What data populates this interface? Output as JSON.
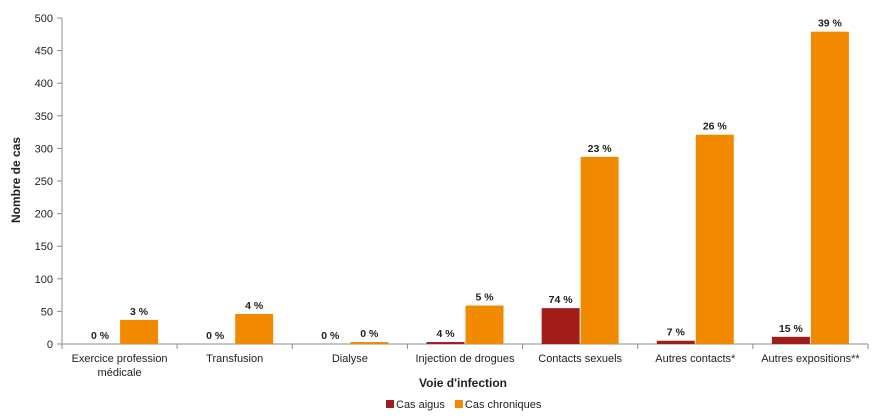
{
  "chart_data": {
    "type": "bar",
    "title": "",
    "xlabel": "Voie d'infection",
    "ylabel": "Nombre de cas",
    "ylim": [
      0,
      500
    ],
    "yticks": [
      0,
      50,
      100,
      150,
      200,
      250,
      300,
      350,
      400,
      450,
      500
    ],
    "grid": false,
    "legend_position": "bottom",
    "categories": [
      [
        "Exercice profession",
        "médicale"
      ],
      [
        "Transfusion"
      ],
      [
        "Dialyse"
      ],
      [
        "Injection de drogues"
      ],
      [
        "Contacts sexuels"
      ],
      [
        "Autres contacts*"
      ],
      [
        "Autres expositions**"
      ]
    ],
    "series": [
      {
        "name": "Cas aigus",
        "color": "#a31c1c",
        "values": [
          0,
          0,
          0,
          3,
          55,
          5,
          11
        ],
        "labels": [
          "0 %",
          "0 %",
          "0 %",
          "4 %",
          "74 %",
          "7 %",
          "15 %"
        ]
      },
      {
        "name": "Cas chroniques",
        "color": "#f28a00",
        "values": [
          37,
          46,
          3,
          59,
          287,
          321,
          479
        ],
        "labels": [
          "3 %",
          "4 %",
          "0 %",
          "5 %",
          "23 %",
          "26 %",
          "39 %"
        ]
      }
    ]
  }
}
